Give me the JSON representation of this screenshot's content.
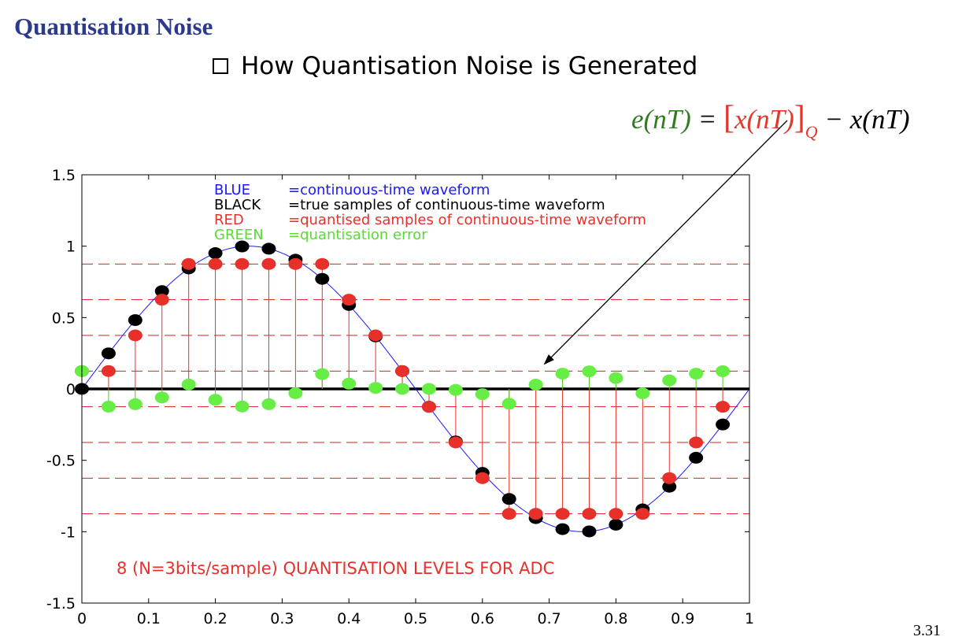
{
  "slide": {
    "title": "Quantisation Noise",
    "bullet": "How Quantisation Noise is Generated",
    "page_number": "3.31"
  },
  "equation": {
    "lhs": "e(nT)",
    "equals": " = ",
    "quantised": "x(nT)",
    "subscript": "Q",
    "rhs": " − x(nT)"
  },
  "colors": {
    "continuous": "#1a1aff",
    "true_samples": "#000000",
    "quantised": "#e8302a",
    "error": "#66ee44",
    "levels": "#d02020",
    "title": "#2b3a8c"
  },
  "chart_data": {
    "type": "line",
    "xlim": [
      0,
      1
    ],
    "ylim": [
      -1.5,
      1.5
    ],
    "x_ticks": [
      "0",
      "0.1",
      "0.2",
      "0.3",
      "0.4",
      "0.5",
      "0.6",
      "0.7",
      "0.8",
      "0.9",
      "1"
    ],
    "y_ticks": [
      "1.5",
      "1",
      "0.5",
      "0",
      "-0.5",
      "-1",
      "-1.5"
    ],
    "y_tick_values": [
      1.5,
      1,
      0.5,
      0,
      -0.5,
      -1,
      -1.5
    ],
    "legend": [
      {
        "key": "BLUE",
        "text": "=continuous-time waveform",
        "color": "#1a1aff"
      },
      {
        "key": "BLACK",
        "text": "=true samples of continuous-time waveform",
        "color": "#000000"
      },
      {
        "key": "RED",
        "text": "=quantised samples of continuous-time waveform",
        "color": "#e8302a"
      },
      {
        "key": "GREEN",
        "text": "=quantisation error",
        "color": "#55dd33"
      }
    ],
    "annotation": "8 (N=3bits/sample) QUANTISATION LEVELS FOR ADC",
    "quantisation_levels": [
      0.875,
      0.625,
      0.375,
      0.125,
      -0.125,
      -0.375,
      -0.625,
      -0.875
    ],
    "sample_x": [
      0,
      0.04,
      0.08,
      0.12,
      0.16,
      0.2,
      0.24,
      0.28,
      0.32,
      0.36,
      0.4,
      0.44,
      0.48,
      0.52,
      0.56,
      0.6,
      0.64,
      0.68,
      0.72,
      0.76,
      0.8,
      0.84,
      0.88,
      0.92,
      0.96
    ],
    "series": [
      {
        "name": "BLACK",
        "values": [
          0,
          0.249,
          0.482,
          0.685,
          0.844,
          0.951,
          0.998,
          0.982,
          0.905,
          0.771,
          0.588,
          0.368,
          0.125,
          -0.125,
          -0.368,
          -0.588,
          -0.771,
          -0.905,
          -0.982,
          -0.998,
          -0.951,
          -0.844,
          -0.685,
          -0.482,
          -0.249
        ]
      },
      {
        "name": "RED",
        "values": [
          0.125,
          0.125,
          0.375,
          0.625,
          0.875,
          0.875,
          0.875,
          0.875,
          0.875,
          0.875,
          0.625,
          0.375,
          0.125,
          -0.125,
          -0.375,
          -0.625,
          -0.875,
          -0.875,
          -0.875,
          -0.875,
          -0.875,
          -0.875,
          -0.625,
          -0.375,
          -0.125
        ]
      },
      {
        "name": "GREEN",
        "values": [
          0.125,
          -0.124,
          -0.107,
          -0.06,
          0.031,
          -0.076,
          -0.123,
          -0.107,
          -0.03,
          0.104,
          0.037,
          0.007,
          0,
          0,
          -0.007,
          -0.037,
          -0.104,
          0.03,
          0.107,
          0.123,
          0.076,
          -0.031,
          0.06,
          0.107,
          0.124
        ]
      }
    ]
  }
}
